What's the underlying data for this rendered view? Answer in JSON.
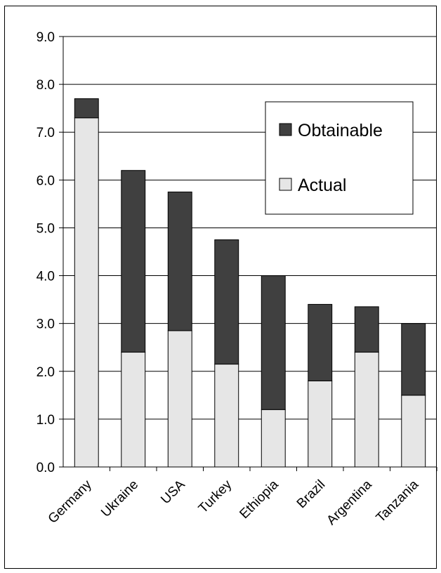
{
  "chart_data": {
    "type": "bar",
    "stacked": true,
    "categories": [
      "Germany",
      "Ukraine",
      "USA",
      "Turkey",
      "Ethiopia",
      "Brazil",
      "Argentina",
      "Tanzania"
    ],
    "series": [
      {
        "name": "Actual",
        "values": [
          7.3,
          2.4,
          2.85,
          2.15,
          1.2,
          1.8,
          2.4,
          1.5
        ],
        "color": "#e6e6e6"
      },
      {
        "name": "Obtainable",
        "values": [
          0.4,
          3.8,
          2.9,
          2.6,
          2.8,
          1.6,
          0.95,
          1.5
        ],
        "color": "#404040"
      }
    ],
    "ylim": [
      0,
      9
    ],
    "yticks": [
      "0.0",
      "1.0",
      "2.0",
      "3.0",
      "4.0",
      "5.0",
      "6.0",
      "7.0",
      "8.0",
      "9.0"
    ],
    "xlabel": "",
    "ylabel": "",
    "title": "",
    "grid": true,
    "legend_position": "top-right"
  }
}
